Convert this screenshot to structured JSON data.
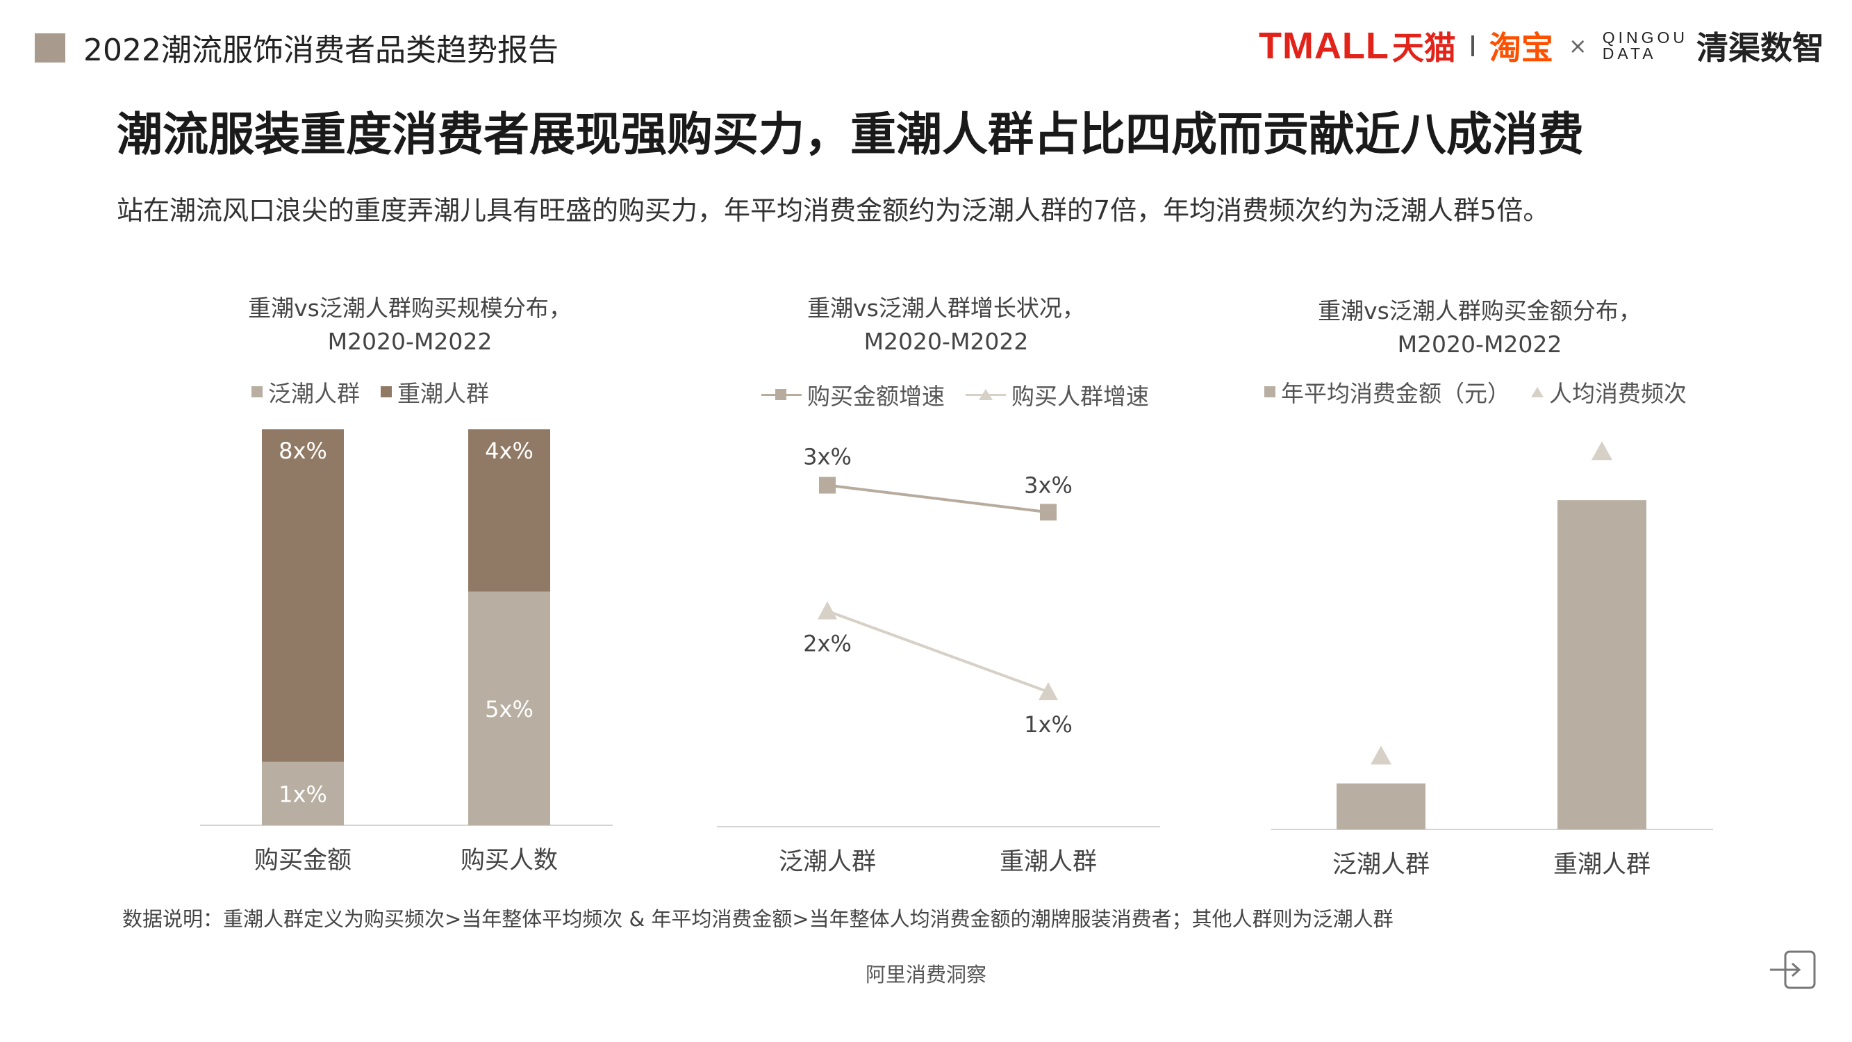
{
  "header": {
    "report_title": "2022潮流服饰消费者品类趋势报告",
    "logos": {
      "tmall": "TMALL",
      "tmall_cn": "天猫",
      "taobao": "淘宝",
      "separator": "×",
      "qingou_top": "QINGOU",
      "qingou_bottom": "DATA",
      "qingqu": "清渠数智"
    }
  },
  "headline": "潮流服装重度消费者展现强购买力，重潮人群占比四成而贡献近八成消费",
  "subheadline": "站在潮流风口浪尖的重度弄潮儿具有旺盛的购买力，年平均消费金额约为泛潮人群的7倍，年均消费频次约为泛潮人群5倍。",
  "colors": {
    "heavy": "#917a65",
    "general": "#b8aea1",
    "line_amount": "#b7ab9d",
    "line_people": "#d7d0c6",
    "baseline": "#d4d4d4",
    "bar_label_light": "#ffffff",
    "accent_square": "#a89a8c"
  },
  "chart_data": [
    {
      "type": "bar",
      "stacked": true,
      "title_line1": "重潮vs泛潮人群购买规模分布，",
      "title_line2": "M2020-M2022",
      "categories": [
        "购买金额",
        "购买人数"
      ],
      "series": [
        {
          "name": "泛潮人群",
          "values": [
            16,
            59
          ],
          "labels": [
            "1x%",
            "5x%"
          ]
        },
        {
          "name": "重潮人群",
          "values": [
            84,
            41
          ],
          "labels": [
            "8x%",
            "4x%"
          ]
        }
      ],
      "ylim": [
        0,
        100
      ],
      "legend": "top"
    },
    {
      "type": "line",
      "title_line1": "重潮vs泛潮人群增长状况，",
      "title_line2": "M2020-M2022",
      "categories": [
        "泛潮人群",
        "重潮人群"
      ],
      "series": [
        {
          "name": "购买金额增速",
          "marker": "square",
          "values": [
            38,
            35
          ],
          "labels": [
            "3x%",
            "3x%"
          ]
        },
        {
          "name": "购买人群增速",
          "marker": "triangle",
          "values": [
            24,
            15
          ],
          "labels": [
            "2x%",
            "1x%"
          ]
        }
      ],
      "ylim": [
        0,
        45
      ],
      "legend": "top"
    },
    {
      "type": "bar",
      "title_line1": "重潮vs泛潮人群购买金额分布，",
      "title_line2": "M2020-M2022",
      "categories": [
        "泛潮人群",
        "重潮人群"
      ],
      "series": [
        {
          "name": "年平均消费金额（元）",
          "kind": "bar",
          "values": [
            13,
            93
          ]
        },
        {
          "name": "人均消费频次",
          "kind": "marker-triangle",
          "values": [
            21,
            107
          ]
        }
      ],
      "ylim": [
        0,
        115
      ],
      "legend": "top"
    }
  ],
  "footnote": "数据说明：重潮人群定义为购买频次>当年整体平均频次 & 年平均消费金额>当年整体人均消费金额的潮牌服装消费者；其他人群则为泛潮人群",
  "source": "阿里消费洞察"
}
